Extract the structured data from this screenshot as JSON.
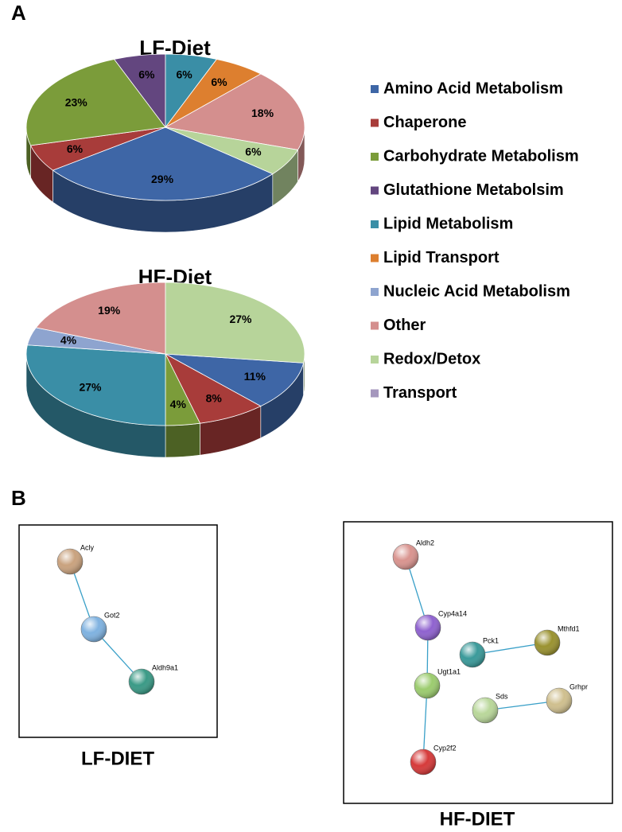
{
  "panels": [
    "A",
    "B"
  ],
  "chart_data": [
    {
      "type": "pie",
      "title": "LF-Diet",
      "categories": [
        "Amino Acid Metabolism",
        "Chaperone",
        "Carbohydrate Metabolism",
        "Glutathione Metabolsim",
        "Lipid Metabolism",
        "Lipid Transport",
        "Nucleic Acid Metabolism",
        "Other",
        "Redox/Detox",
        "Transport"
      ],
      "colors": [
        "#3e66a6",
        "#a83c3a",
        "#7b9c3a",
        "#63467f",
        "#3a8ea6",
        "#dd7f2f",
        "#8ea4cf",
        "#d48f8e",
        "#b7d49a",
        "#a597bd"
      ],
      "values": [
        29,
        6,
        23,
        6,
        6,
        6,
        null,
        18,
        6,
        null
      ],
      "value_labels": [
        "29%",
        "6%",
        "23%",
        "6%",
        "6%",
        "6%",
        null,
        "18%",
        "6%",
        null
      ]
    },
    {
      "type": "pie",
      "title": "HF-Diet",
      "categories": [
        "Amino Acid Metabolism",
        "Chaperone",
        "Carbohydrate Metabolism",
        "Glutathione Metabolsim",
        "Lipid Metabolism",
        "Lipid Transport",
        "Nucleic Acid Metabolism",
        "Other",
        "Redox/Detox",
        "Transport"
      ],
      "colors": [
        "#3e66a6",
        "#a83c3a",
        "#7b9c3a",
        "#63467f",
        "#3a8ea6",
        "#dd7f2f",
        "#8ea4cf",
        "#d48f8e",
        "#b7d49a",
        "#a597bd"
      ],
      "values": [
        11,
        8,
        4,
        null,
        27,
        null,
        4,
        19,
        27,
        null
      ],
      "value_labels": [
        "11%",
        "8%",
        "4%",
        null,
        "27%",
        null,
        "4%",
        "19%",
        "27%",
        null
      ]
    }
  ],
  "networks": [
    {
      "label": "LF-DIET",
      "nodes": [
        "Acly",
        "Got2",
        "Aldh9a1"
      ]
    },
    {
      "label": "HF-DIET",
      "nodes": [
        "Aldh2",
        "Cyp4a14",
        "Pck1",
        "Mthfd1",
        "Ugt1a1",
        "Sds",
        "Grhpr",
        "Cyp2f2"
      ]
    }
  ]
}
